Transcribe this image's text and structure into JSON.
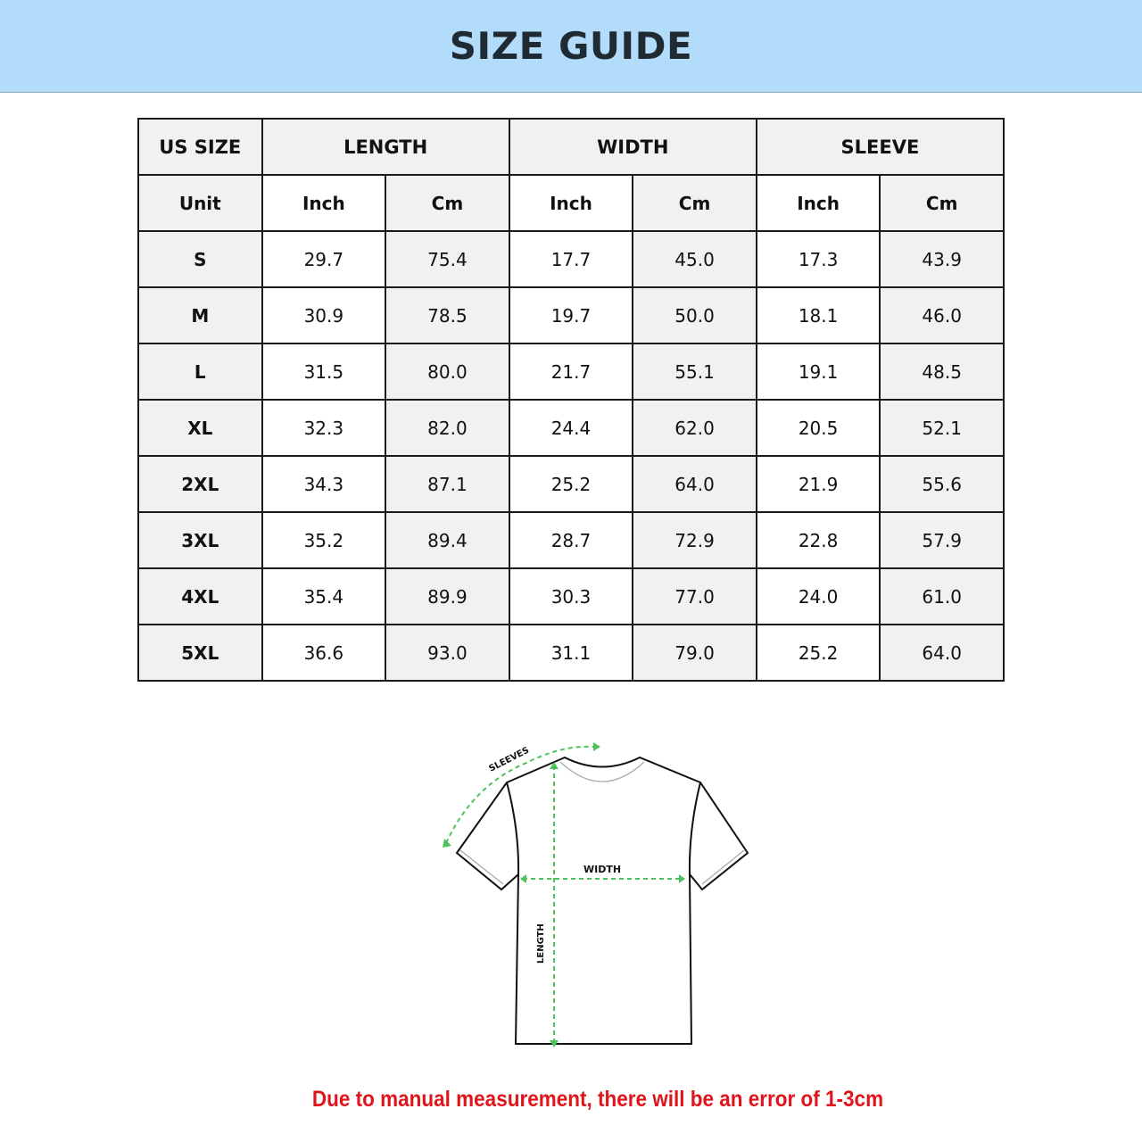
{
  "header": {
    "title": "SIZE GUIDE"
  },
  "table": {
    "group_headers": [
      "US SIZE",
      "LENGTH",
      "WIDTH",
      "SLEEVE"
    ],
    "unit_row": [
      "Unit",
      "Inch",
      "Cm",
      "Inch",
      "Cm",
      "Inch",
      "Cm"
    ],
    "rows": [
      [
        "S",
        "29.7",
        "75.4",
        "17.7",
        "45.0",
        "17.3",
        "43.9"
      ],
      [
        "M",
        "30.9",
        "78.5",
        "19.7",
        "50.0",
        "18.1",
        "46.0"
      ],
      [
        "L",
        "31.5",
        "80.0",
        "21.7",
        "55.1",
        "19.1",
        "48.5"
      ],
      [
        "XL",
        "32.3",
        "82.0",
        "24.4",
        "62.0",
        "20.5",
        "52.1"
      ],
      [
        "2XL",
        "34.3",
        "87.1",
        "25.2",
        "64.0",
        "21.9",
        "55.6"
      ],
      [
        "3XL",
        "35.2",
        "89.4",
        "28.7",
        "72.9",
        "22.8",
        "57.9"
      ],
      [
        "4XL",
        "35.4",
        "89.9",
        "30.3",
        "77.0",
        "24.0",
        "61.0"
      ],
      [
        "5XL",
        "36.6",
        "93.0",
        "31.1",
        "79.0",
        "25.2",
        "64.0"
      ]
    ]
  },
  "diagram": {
    "sleeves_label": "SLEEVES",
    "width_label": "WIDTH",
    "length_label": "LENGTH"
  },
  "note": "Due to manual measurement, there will be an error of 1-3cm",
  "colors": {
    "banner": "#b3dcfb",
    "note": "#e0141b",
    "measure_line": "#4cc35a"
  }
}
